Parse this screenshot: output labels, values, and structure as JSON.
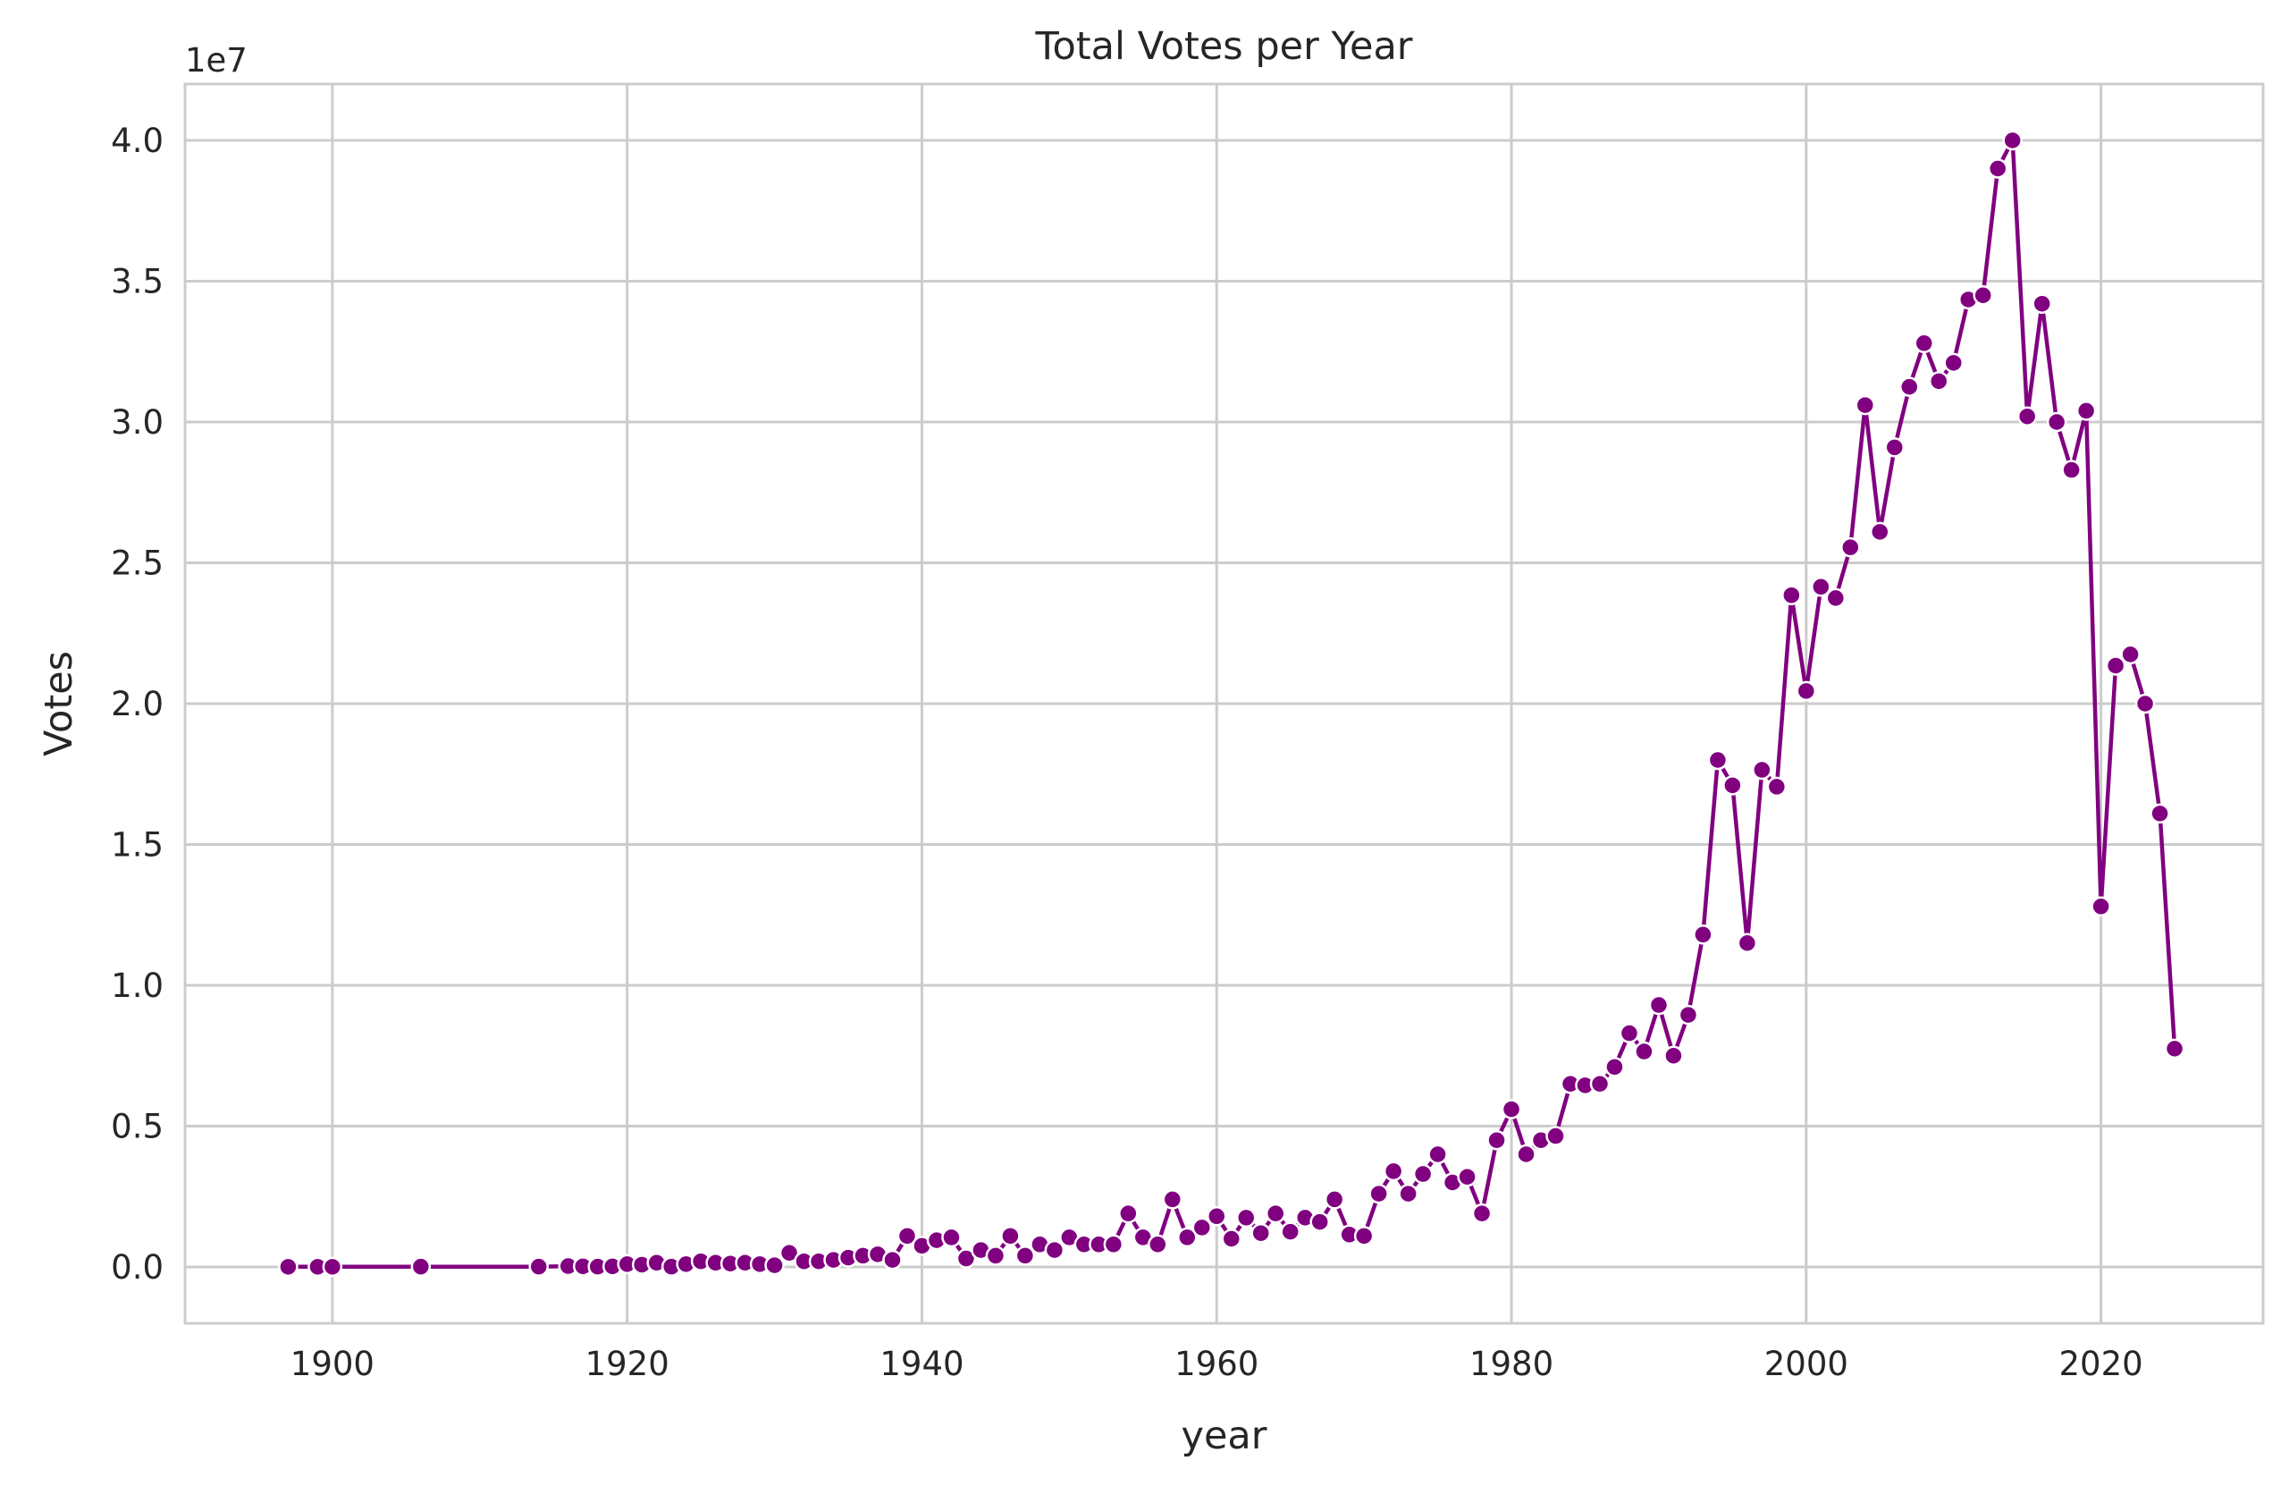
{
  "chart_data": {
    "type": "line",
    "title": "Total Votes per Year",
    "xlabel": "year",
    "ylabel": "Votes",
    "y_offset_label": "1e7",
    "xlim": [
      1890,
      2031
    ],
    "ylim": [
      -2000000,
      42000000
    ],
    "x_ticks": [
      1900,
      1920,
      1940,
      1960,
      1980,
      2000,
      2020
    ],
    "x_tick_labels": [
      "1900",
      "1920",
      "1940",
      "1960",
      "1980",
      "2000",
      "2020"
    ],
    "y_ticks": [
      0,
      5000000,
      10000000,
      15000000,
      20000000,
      25000000,
      30000000,
      35000000,
      40000000
    ],
    "y_tick_labels": [
      "0.0",
      "0.5",
      "1.0",
      "1.5",
      "2.0",
      "2.5",
      "3.0",
      "3.5",
      "4.0"
    ],
    "grid": true,
    "line_color": "#800080",
    "marker": "circle",
    "series": [
      {
        "x": [
          1897,
          1899,
          1900,
          1906,
          1914,
          1916,
          1917,
          1918,
          1919,
          1920,
          1921,
          1922,
          1923,
          1924,
          1925,
          1926,
          1927,
          1928,
          1929,
          1930,
          1931,
          1932,
          1933,
          1934,
          1935,
          1936,
          1937,
          1938,
          1939,
          1940,
          1941,
          1942,
          1943,
          1944,
          1945,
          1946,
          1947,
          1948,
          1949,
          1950,
          1951,
          1952,
          1953,
          1954,
          1955,
          1956,
          1957,
          1958,
          1959,
          1960,
          1961,
          1962,
          1963,
          1964,
          1965,
          1966,
          1967,
          1968,
          1969,
          1970,
          1971,
          1972,
          1973,
          1974,
          1975,
          1976,
          1977,
          1978,
          1979,
          1980,
          1981,
          1982,
          1983,
          1984,
          1985,
          1986,
          1987,
          1988,
          1989,
          1990,
          1991,
          1992,
          1993,
          1994,
          1995,
          1996,
          1997,
          1998,
          1999,
          2000,
          2001,
          2002,
          2003,
          2004,
          2005,
          2006,
          2007,
          2008,
          2009,
          2010,
          2011,
          2012,
          2013,
          2014,
          2015,
          2016,
          2017,
          2018,
          2019,
          2020,
          2021,
          2022,
          2023,
          2024,
          2025
        ],
        "y": [
          5000,
          5000,
          5000,
          10000,
          10000,
          30000,
          20000,
          10000,
          20000,
          100000,
          80000,
          150000,
          10000,
          100000,
          200000,
          150000,
          120000,
          150000,
          100000,
          60000,
          500000,
          200000,
          200000,
          250000,
          330000,
          400000,
          450000,
          250000,
          1100000,
          750000,
          950000,
          1050000,
          300000,
          600000,
          400000,
          1100000,
          400000,
          800000,
          600000,
          1050000,
          800000,
          800000,
          800000,
          1900000,
          1050000,
          800000,
          2400000,
          1050000,
          1400000,
          1800000,
          1000000,
          1750000,
          1200000,
          1900000,
          1250000,
          1750000,
          1600000,
          2400000,
          1150000,
          1100000,
          2600000,
          3400000,
          2600000,
          3300000,
          4000000,
          3000000,
          3200000,
          1900000,
          4500000,
          5600000,
          4000000,
          4500000,
          4650000,
          6500000,
          6450000,
          6500000,
          7100000,
          8300000,
          7650000,
          9300000,
          7500000,
          8950000,
          11800000,
          18000000,
          17100000,
          11500000,
          17650000,
          17050000,
          23850000,
          20450000,
          24150000,
          23750000,
          25550000,
          30600000,
          26100000,
          29100000,
          31250000,
          32800000,
          31450000,
          32100000,
          34350000,
          34500000,
          39000000,
          40000000,
          30200000,
          34200000,
          30000000,
          28300000,
          30400000,
          12800000,
          21350000,
          21750000,
          20000000,
          16100000,
          7750000
        ]
      }
    ]
  }
}
